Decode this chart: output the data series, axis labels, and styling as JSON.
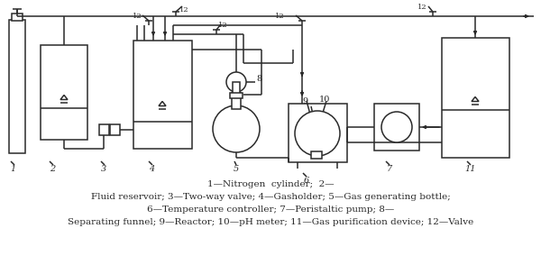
{
  "bg": "#ffffff",
  "lc": "#2a2a2a",
  "lw": 1.1,
  "captions": [
    "1—Nitrogen  cylinder;  2—",
    "Fluid reservoir; 3—Two-way valve; 4—Gasholder; 5—Gas generating bottle;",
    "6—Temperature controller; 7—Peristaltic pump; 8—",
    "Separating funnel; 9—Reactor; 10—pH meter; 11—Gas purification device; 12—Valve"
  ]
}
